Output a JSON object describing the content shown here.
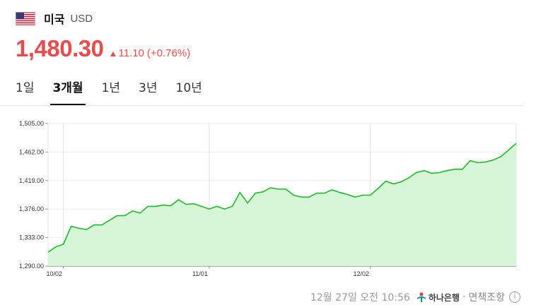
{
  "header": {
    "country": "미국",
    "currency": "USD",
    "flag_icon": "us-flag-icon"
  },
  "price": {
    "value": "1,480.30",
    "change": "11.10",
    "change_pct": "(+0.76%)",
    "direction": "up",
    "color": "#e74c4c"
  },
  "tabs": [
    {
      "label": "1일",
      "active": false
    },
    {
      "label": "3개월",
      "active": true
    },
    {
      "label": "1년",
      "active": false
    },
    {
      "label": "3년",
      "active": false
    },
    {
      "label": "10년",
      "active": false
    }
  ],
  "footer": {
    "timestamp": "12월 27일 오전 10:56",
    "bank": "하나은행",
    "disclaimer": "면책조항",
    "info_icon": "info-icon"
  },
  "chart_data": {
    "type": "area",
    "line_color": "#1db92a",
    "fill_color": "#d6f5d6",
    "ylim": [
      1290,
      1505
    ],
    "y_ticks": [
      "1,505.00",
      "1,462.00",
      "1,419.00",
      "1,376.00",
      "1,333.00",
      "1,290.00"
    ],
    "x_ticks": [
      "10/02",
      "11/01",
      "12/02"
    ],
    "grid": true,
    "values": [
      1311,
      1319,
      1323,
      1350,
      1347,
      1345,
      1352,
      1352,
      1359,
      1366,
      1366,
      1373,
      1370,
      1380,
      1380,
      1382,
      1381,
      1390,
      1383,
      1384,
      1380,
      1376,
      1380,
      1376,
      1380,
      1401,
      1385,
      1400,
      1402,
      1408,
      1406,
      1406,
      1397,
      1394,
      1394,
      1400,
      1400,
      1405,
      1401,
      1398,
      1394,
      1397,
      1397,
      1407,
      1418,
      1414,
      1417,
      1423,
      1431,
      1434,
      1430,
      1431,
      1434,
      1436,
      1436,
      1449,
      1446,
      1447,
      1450,
      1455,
      1465,
      1475
    ]
  }
}
